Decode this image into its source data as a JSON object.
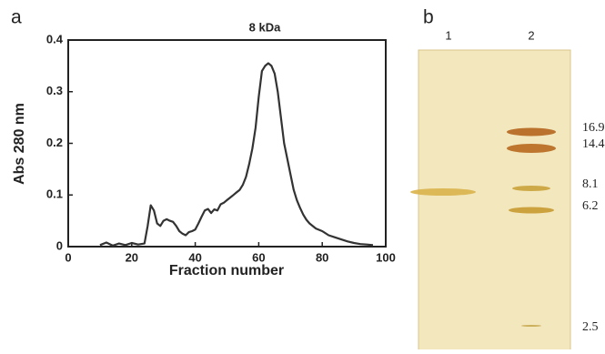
{
  "chart_data": {
    "type": "line",
    "panel": "a",
    "annotation": "8 kDa",
    "xlabel": "Fraction number",
    "ylabel": "Abs 280 nm",
    "x": [
      10,
      12,
      14,
      16,
      18,
      20,
      22,
      24,
      25,
      26,
      27,
      28,
      29,
      30,
      31,
      32,
      33,
      34,
      35,
      36,
      37,
      38,
      39,
      40,
      41,
      42,
      43,
      44,
      45,
      46,
      47,
      48,
      49,
      50,
      51,
      52,
      53,
      54,
      55,
      56,
      57,
      58,
      59,
      60,
      61,
      62,
      63,
      64,
      65,
      66,
      67,
      68,
      69,
      70,
      71,
      72,
      73,
      74,
      75,
      76,
      78,
      80,
      82,
      84,
      86,
      88,
      90,
      92,
      94,
      96
    ],
    "values": [
      0.003,
      0.008,
      0.002,
      0.006,
      0.003,
      0.007,
      0.004,
      0.006,
      0.04,
      0.08,
      0.07,
      0.045,
      0.04,
      0.05,
      0.053,
      0.05,
      0.048,
      0.04,
      0.03,
      0.025,
      0.022,
      0.028,
      0.03,
      0.033,
      0.045,
      0.058,
      0.07,
      0.073,
      0.065,
      0.072,
      0.07,
      0.082,
      0.085,
      0.09,
      0.095,
      0.1,
      0.105,
      0.11,
      0.12,
      0.135,
      0.16,
      0.19,
      0.23,
      0.29,
      0.34,
      0.35,
      0.355,
      0.35,
      0.335,
      0.3,
      0.25,
      0.2,
      0.17,
      0.14,
      0.11,
      0.09,
      0.075,
      0.062,
      0.052,
      0.045,
      0.035,
      0.03,
      0.022,
      0.018,
      0.014,
      0.01,
      0.007,
      0.005,
      0.004,
      0.003
    ],
    "color": "#333333",
    "xlim": [
      0,
      100
    ],
    "xticks": [
      0,
      20,
      40,
      60,
      80,
      100
    ],
    "ylim": [
      0,
      0.4
    ],
    "yticks": [
      0,
      0.1,
      0.2,
      0.3,
      0.4
    ]
  },
  "gel": {
    "panel": "b",
    "lanes": [
      "1",
      "2"
    ],
    "markers": [
      16.9,
      14.4,
      8.1,
      6.2,
      2.5
    ]
  }
}
